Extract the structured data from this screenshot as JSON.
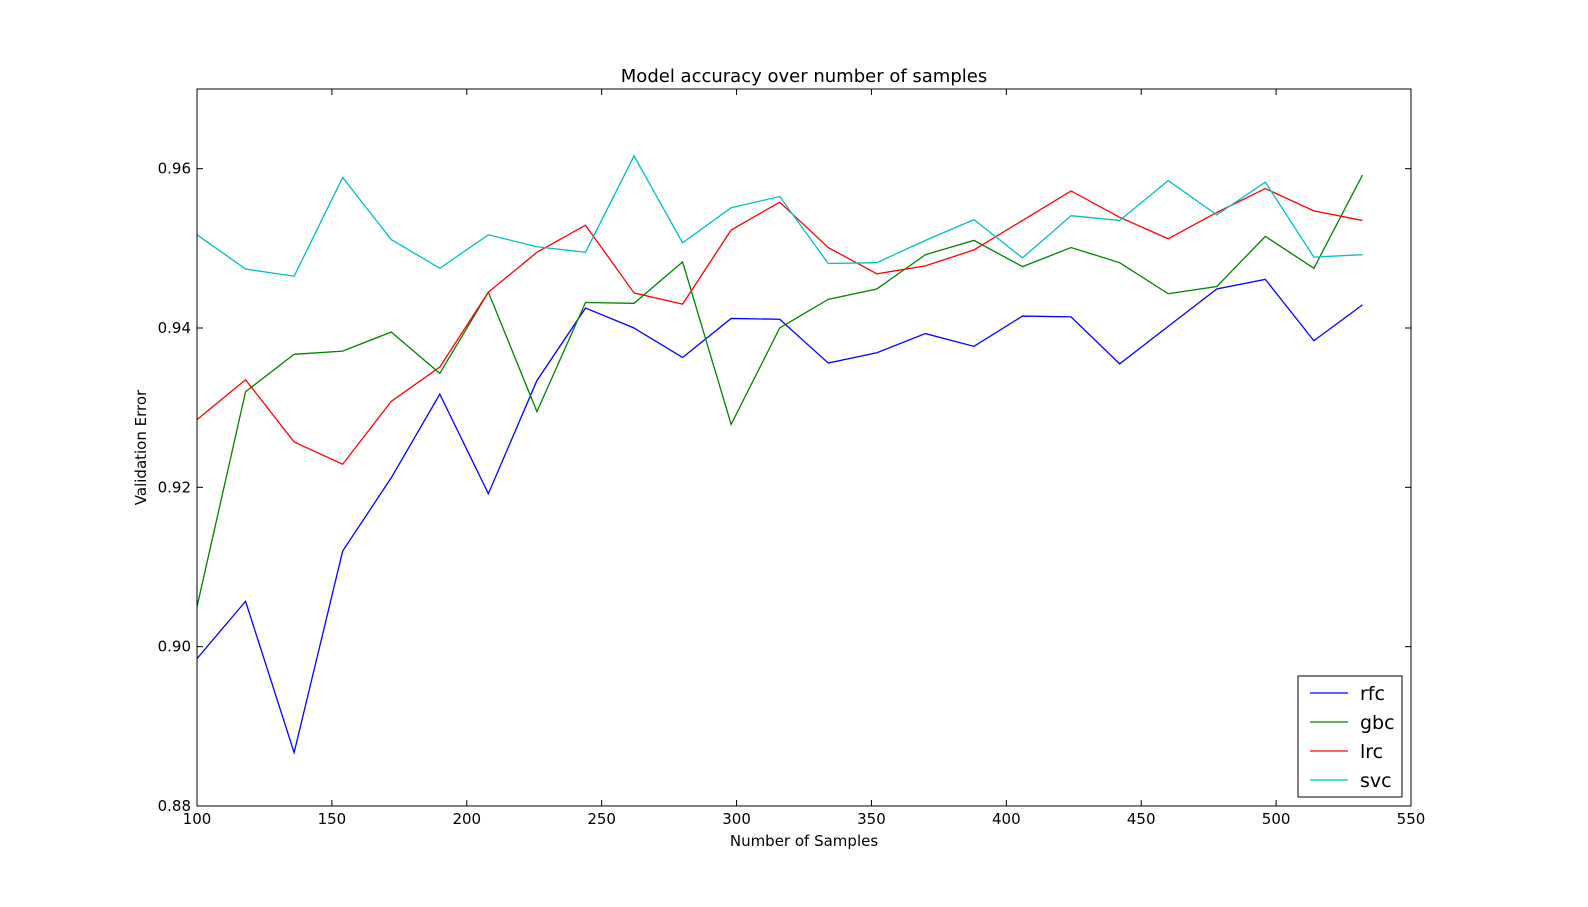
{
  "chart_data": {
    "type": "line",
    "title": "Model accuracy over number of samples",
    "xlabel": "Number of Samples",
    "ylabel": "Validation Error",
    "xlim": [
      100,
      550
    ],
    "ylim": [
      0.88,
      0.97
    ],
    "xticks": [
      100,
      150,
      200,
      250,
      300,
      350,
      400,
      450,
      500,
      550
    ],
    "yticks": [
      0.88,
      0.9,
      0.92,
      0.94,
      0.96
    ],
    "ytick_labels": [
      "0.88",
      "0.90",
      "0.92",
      "0.94",
      "0.96"
    ],
    "grid": false,
    "legend_position": "lower-right",
    "x": [
      100,
      118,
      136,
      154,
      172,
      190,
      208,
      226,
      244,
      262,
      280,
      298,
      316,
      334,
      352,
      370,
      388,
      406,
      424,
      442,
      460,
      478,
      496,
      514,
      532
    ],
    "series": [
      {
        "name": "rfc",
        "color": "#0000ff",
        "values": [
          0.8985,
          0.9057,
          0.8867,
          0.912,
          0.9212,
          0.9317,
          0.9192,
          0.9334,
          0.9425,
          0.94,
          0.9363,
          0.9412,
          0.9411,
          0.9356,
          0.9369,
          0.9393,
          0.9377,
          0.9415,
          0.9414,
          0.9355,
          0.9402,
          0.9449,
          0.9461,
          0.9384,
          0.9429
        ]
      },
      {
        "name": "gbc",
        "color": "#008000",
        "values": [
          0.905,
          0.932,
          0.9367,
          0.9371,
          0.9395,
          0.9343,
          0.9445,
          0.9295,
          0.9432,
          0.9431,
          0.9483,
          0.9279,
          0.94,
          0.9436,
          0.9449,
          0.9492,
          0.951,
          0.9477,
          0.9501,
          0.9482,
          0.9443,
          0.9452,
          0.9515,
          0.9475,
          0.9592
        ]
      },
      {
        "name": "lrc",
        "color": "#ff0000",
        "values": [
          0.9285,
          0.9335,
          0.9257,
          0.9229,
          0.9308,
          0.9351,
          0.9445,
          0.9495,
          0.9529,
          0.9444,
          0.943,
          0.9523,
          0.9558,
          0.9501,
          0.9468,
          0.9478,
          0.9498,
          0.9535,
          0.9572,
          0.9539,
          0.9512,
          0.9545,
          0.9575,
          0.9547,
          0.9535
        ]
      },
      {
        "name": "svc",
        "color": "#00bfbf",
        "values": [
          0.9517,
          0.9474,
          0.9465,
          0.9589,
          0.9511,
          0.9475,
          0.9517,
          0.9502,
          0.9495,
          0.9616,
          0.9507,
          0.9551,
          0.9565,
          0.9481,
          0.9482,
          0.951,
          0.9536,
          0.9488,
          0.9541,
          0.9535,
          0.9585,
          0.9542,
          0.9583,
          0.9489,
          0.9492
        ]
      }
    ]
  }
}
